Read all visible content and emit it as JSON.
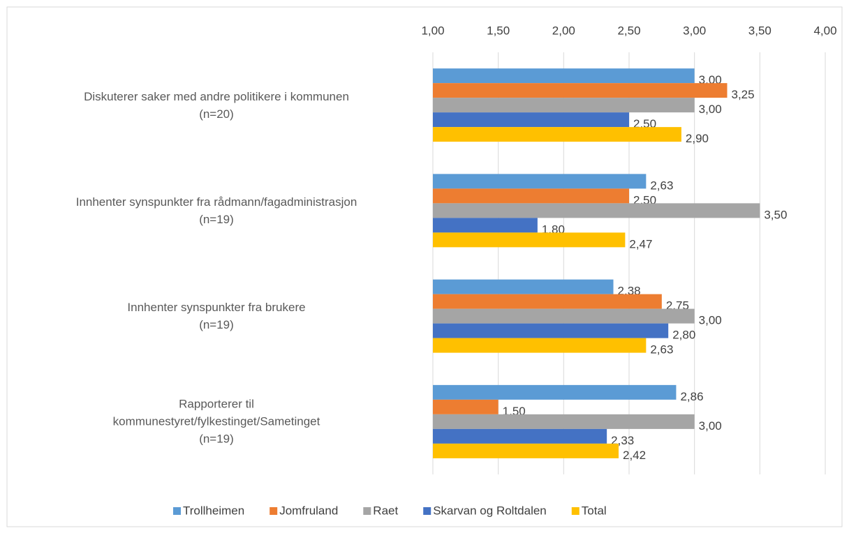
{
  "chart_data": {
    "type": "bar",
    "orientation": "horizontal",
    "categories": [
      "Diskuterer saker med andre politikere i kommunen\n(n=20)",
      "Innhenter synspunkter fra rådmann/fagadministrasjon\n(n=19)",
      "Innhenter synspunkter fra brukere\n(n=19)",
      "Rapporterer til\nkommunestyret/fylkestinget/Sametinget\n(n=19)"
    ],
    "series": [
      {
        "name": "Trollheimen",
        "color": "#5b9bd5",
        "values": [
          3.0,
          2.63,
          2.38,
          2.86
        ],
        "value_labels": [
          "3,00",
          "2,63",
          "2,38",
          "2,86"
        ]
      },
      {
        "name": "Jomfruland",
        "color": "#ed7d31",
        "values": [
          3.25,
          2.5,
          2.75,
          1.5
        ],
        "value_labels": [
          "3,25",
          "2,50",
          "2,75",
          "1,50"
        ]
      },
      {
        "name": "Raet",
        "color": "#a5a5a5",
        "values": [
          3.0,
          3.5,
          3.0,
          3.0
        ],
        "value_labels": [
          "3,00",
          "3,50",
          "3,00",
          "3,00"
        ]
      },
      {
        "name": "Skarvan og Roltdalen",
        "color": "#4472c4",
        "values": [
          2.5,
          1.8,
          2.8,
          2.33
        ],
        "value_labels": [
          "2,50",
          "1,80",
          "2,80",
          "2,33"
        ]
      },
      {
        "name": "Total",
        "color": "#ffc000",
        "values": [
          2.9,
          2.47,
          2.63,
          2.42
        ],
        "value_labels": [
          "2,90",
          "2,47",
          "2,63",
          "2,42"
        ]
      }
    ],
    "xlim": [
      1,
      4
    ],
    "xticks": [
      {
        "value": 1,
        "label": "1,00"
      },
      {
        "value": 1.5,
        "label": "1,50"
      },
      {
        "value": 2,
        "label": "2,00"
      },
      {
        "value": 2.5,
        "label": "2,50"
      },
      {
        "value": 3,
        "label": "3,00"
      },
      {
        "value": 3.5,
        "label": "3,50"
      },
      {
        "value": 4,
        "label": "4,00"
      }
    ],
    "grid": true,
    "legend": "bottom"
  }
}
